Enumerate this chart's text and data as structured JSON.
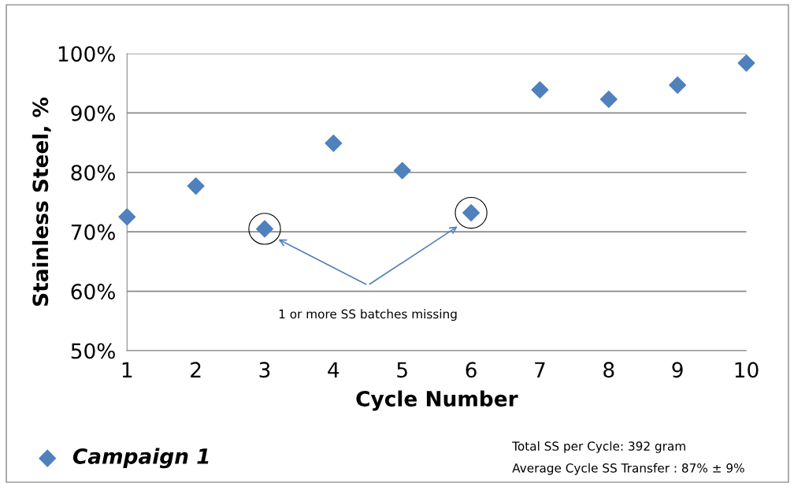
{
  "chart_data": {
    "type": "scatter",
    "xlabel": "Cycle Number",
    "ylabel": "Stainless Steel, %",
    "x": [
      1,
      2,
      3,
      4,
      5,
      6,
      7,
      8,
      9,
      10
    ],
    "series": [
      {
        "name": "Campaign 1",
        "color": "#4f81bd",
        "values": [
          72.5,
          77.7,
          70.5,
          84.9,
          80.3,
          73.2,
          93.9,
          92.3,
          94.7,
          98.4
        ]
      }
    ],
    "xlim": [
      1,
      10
    ],
    "xticks": [
      1,
      2,
      3,
      4,
      5,
      6,
      7,
      8,
      9,
      10
    ],
    "ylim": [
      50,
      100
    ],
    "yticks": [
      {
        "value": 50,
        "label": "50%"
      },
      {
        "value": 60,
        "label": "60%"
      },
      {
        "value": 70,
        "label": "70%"
      },
      {
        "value": 80,
        "label": "80%"
      },
      {
        "value": 90,
        "label": "90%"
      },
      {
        "value": 100,
        "label": "100%"
      }
    ],
    "grid": "y",
    "legend": "bottom left",
    "marker": "diamond",
    "annotations": [
      "1 or more SS batches missing",
      "Total SS per Cycle: 392 gram",
      "Average Cycle SS Transfer : 87% ± 9%"
    ]
  }
}
